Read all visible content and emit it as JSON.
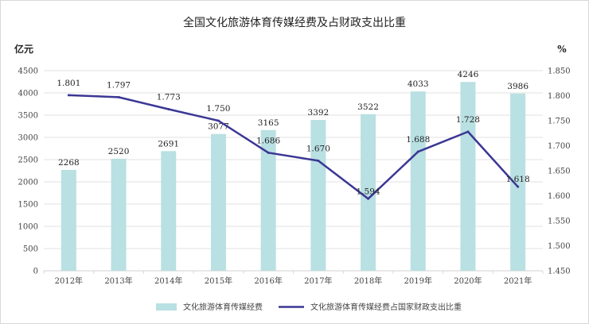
{
  "chart_data": {
    "type": "bar+line",
    "title": "全国文化旅游体育传媒经费及占财政支出比重",
    "categories": [
      "2012年",
      "2013年",
      "2014年",
      "2015年",
      "2016年",
      "2017年",
      "2018年",
      "2019年",
      "2020年",
      "2021年"
    ],
    "y_left": {
      "unit": "亿元",
      "range": [
        0,
        4500
      ],
      "ticks": [
        "0",
        "500",
        "1000",
        "1500",
        "2000",
        "2500",
        "3000",
        "3500",
        "4000",
        "4500"
      ]
    },
    "y_right": {
      "unit": "%",
      "range": [
        1.45,
        1.85
      ],
      "ticks": [
        "1.450",
        "1.500",
        "1.550",
        "1.600",
        "1.650",
        "1.700",
        "1.750",
        "1.800",
        "1.850"
      ]
    },
    "series": [
      {
        "name": "文化旅游体育传媒经费",
        "type": "bar",
        "axis": "left",
        "values": [
          2268,
          2520,
          2691,
          3077,
          3165,
          3392,
          3522,
          4033,
          4246,
          3986
        ],
        "labels": [
          "2268",
          "2520",
          "2691",
          "3077",
          "3165",
          "3392",
          "3522",
          "4033",
          "4246",
          "3986"
        ]
      },
      {
        "name": "文化旅游体育传媒经费占国家财政支出比重",
        "type": "line",
        "axis": "right",
        "values": [
          1.801,
          1.797,
          1.773,
          1.75,
          1.686,
          1.67,
          1.594,
          1.688,
          1.728,
          1.618
        ],
        "labels": [
          "1.801",
          "1.797",
          "1.773",
          "1.750",
          "1.686",
          "1.670",
          "1.594",
          "1.688",
          "1.728",
          "1.618"
        ]
      }
    ],
    "gridlines": true,
    "legend_position": "bottom"
  },
  "colors": {
    "bar": "#b9e0e2",
    "line": "#3b3794",
    "grid": "#d9d9d9"
  }
}
